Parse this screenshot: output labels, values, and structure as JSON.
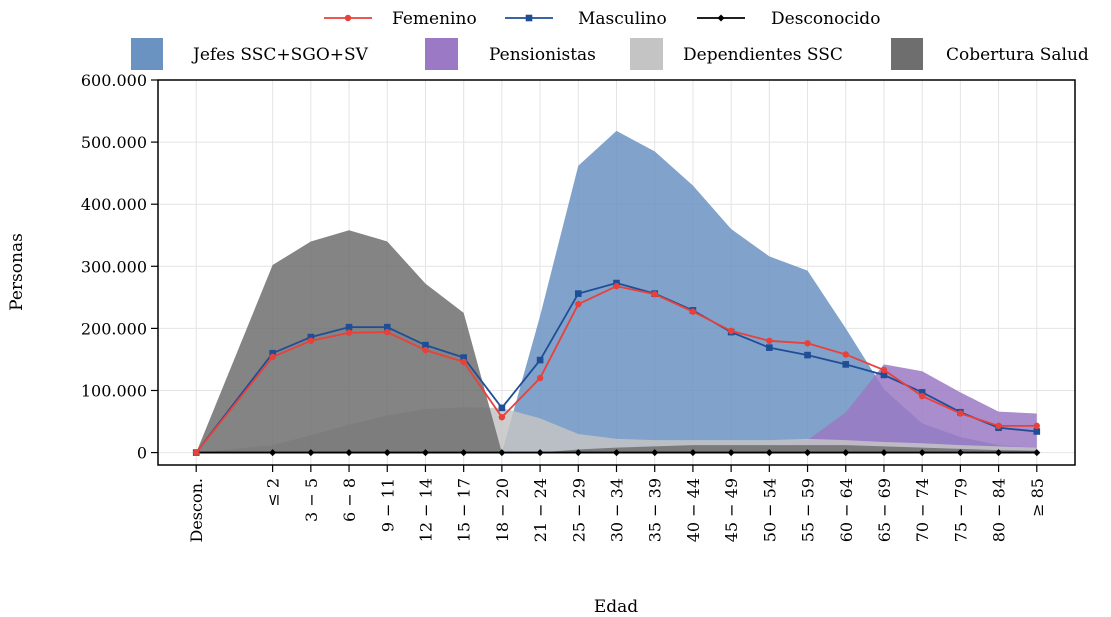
{
  "chart_data": {
    "type": "line",
    "title": "",
    "xlabel": "Edad",
    "ylabel": "Personas",
    "categories": [
      "Descon.",
      "≤ 2",
      "3 − 5",
      "6 − 8",
      "9 − 11",
      "12 − 14",
      "15 − 17",
      "18 − 20",
      "21 − 24",
      "25 − 29",
      "30 − 34",
      "35 − 39",
      "40 − 44",
      "45 − 49",
      "50 − 54",
      "55 − 59",
      "60 − 64",
      "65 − 69",
      "70 − 74",
      "75 − 79",
      "80 − 84",
      "≥ 85"
    ],
    "x_positions": [
      0,
      2,
      3,
      4,
      5,
      6,
      7,
      8,
      9,
      10,
      11,
      12,
      13,
      14,
      15,
      16,
      17,
      18,
      19,
      20,
      21,
      22
    ],
    "xlim": [
      -1,
      23
    ],
    "ylim": [
      -20000,
      600000
    ],
    "yticks": [
      0,
      100000,
      200000,
      300000,
      400000,
      500000,
      600000
    ],
    "ytick_labels": [
      "0",
      "100.000",
      "200.000",
      "300.000",
      "400.000",
      "500.000",
      "600.000"
    ],
    "grid": true,
    "legend_position": "top",
    "areas": [
      {
        "name": "Jefes SSC+SGO+SV",
        "color": "#6b93c2",
        "values": [
          0,
          0,
          0,
          0,
          0,
          0,
          0,
          0,
          220000,
          462000,
          518000,
          485000,
          430000,
          360000,
          316000,
          293000,
          200000,
          102000,
          47000,
          25000,
          12000,
          8000
        ]
      },
      {
        "name": "Pensionistas",
        "color": "#9b79c4",
        "values": [
          0,
          0,
          0,
          0,
          0,
          0,
          0,
          0,
          0,
          0,
          0,
          0,
          0,
          0,
          5000,
          20000,
          65000,
          142000,
          131000,
          97000,
          66000,
          63000
        ]
      },
      {
        "name": "Dependientes SSC",
        "color": "#c4c4c4",
        "values": [
          0,
          12000,
          28000,
          45000,
          60000,
          70000,
          73000,
          72000,
          55000,
          30000,
          22000,
          20000,
          20000,
          20000,
          20000,
          22000,
          20000,
          17000,
          15000,
          12000,
          10000,
          8000
        ]
      },
      {
        "name": "Cobertura Salud",
        "color": "#6e6e6e",
        "values": [
          0,
          302000,
          340000,
          358000,
          340000,
          272000,
          225000,
          0,
          0,
          5000,
          8000,
          10000,
          12000,
          12000,
          12000,
          12000,
          12000,
          10000,
          8000,
          6000,
          4000,
          3000
        ]
      }
    ],
    "series": [
      {
        "name": "Femenino",
        "color": "#e8413a",
        "marker": "circle",
        "values": [
          0,
          154000,
          180000,
          193000,
          194000,
          165000,
          146000,
          57000,
          120000,
          239000,
          268000,
          255000,
          227000,
          196000,
          180000,
          176000,
          158000,
          133000,
          91000,
          63000,
          43000,
          43000
        ]
      },
      {
        "name": "Masculino",
        "color": "#1f4e96",
        "marker": "square",
        "values": [
          0,
          160000,
          186000,
          202000,
          202000,
          173000,
          153000,
          72000,
          149000,
          256000,
          273000,
          256000,
          229000,
          194000,
          169000,
          157000,
          142000,
          125000,
          97000,
          65000,
          40000,
          34000
        ]
      },
      {
        "name": "Desconocido",
        "color": "#000000",
        "marker": "diamond",
        "values": [
          0,
          0,
          0,
          0,
          0,
          0,
          0,
          0,
          0,
          0,
          0,
          0,
          0,
          0,
          0,
          0,
          0,
          0,
          0,
          0,
          0,
          0
        ]
      }
    ]
  }
}
